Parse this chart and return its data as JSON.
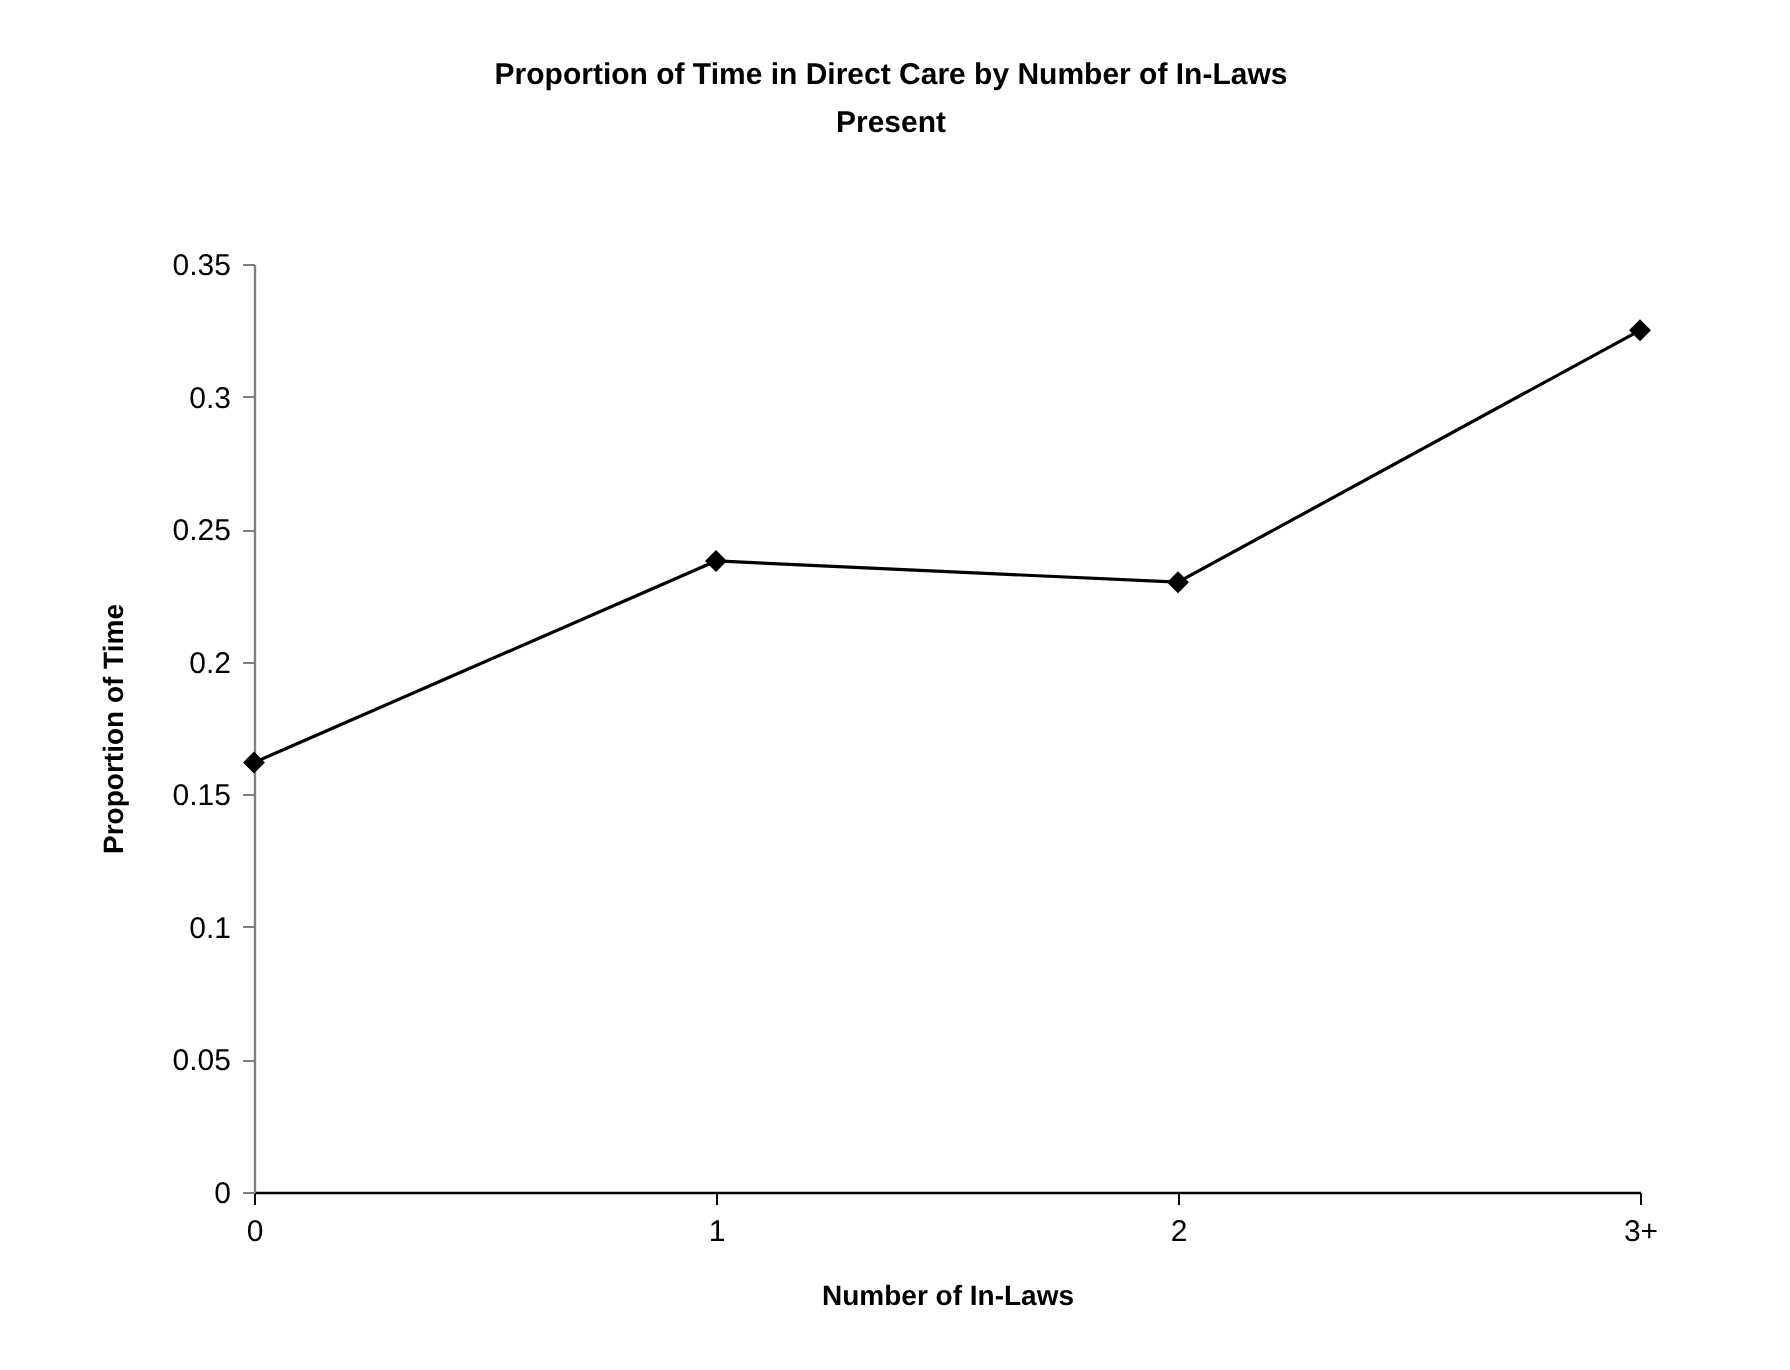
{
  "chart_data": {
    "type": "line",
    "title": "Proportion of Time in Direct Care by Number of In-Laws Present",
    "xlabel": "Number of In-Laws",
    "ylabel": "Proportion of Time",
    "categories": [
      "0",
      "1",
      "2",
      "3+"
    ],
    "series": [
      {
        "color": "#000000",
        "values": [
          0.162,
          0.238,
          0.23,
          0.325
        ]
      }
    ],
    "ylim": [
      0,
      0.35
    ],
    "yticks": [
      0,
      0.05,
      0.1,
      0.15,
      0.2,
      0.25,
      0.3,
      0.35
    ],
    "marker": "diamond",
    "line_style": "solid"
  }
}
